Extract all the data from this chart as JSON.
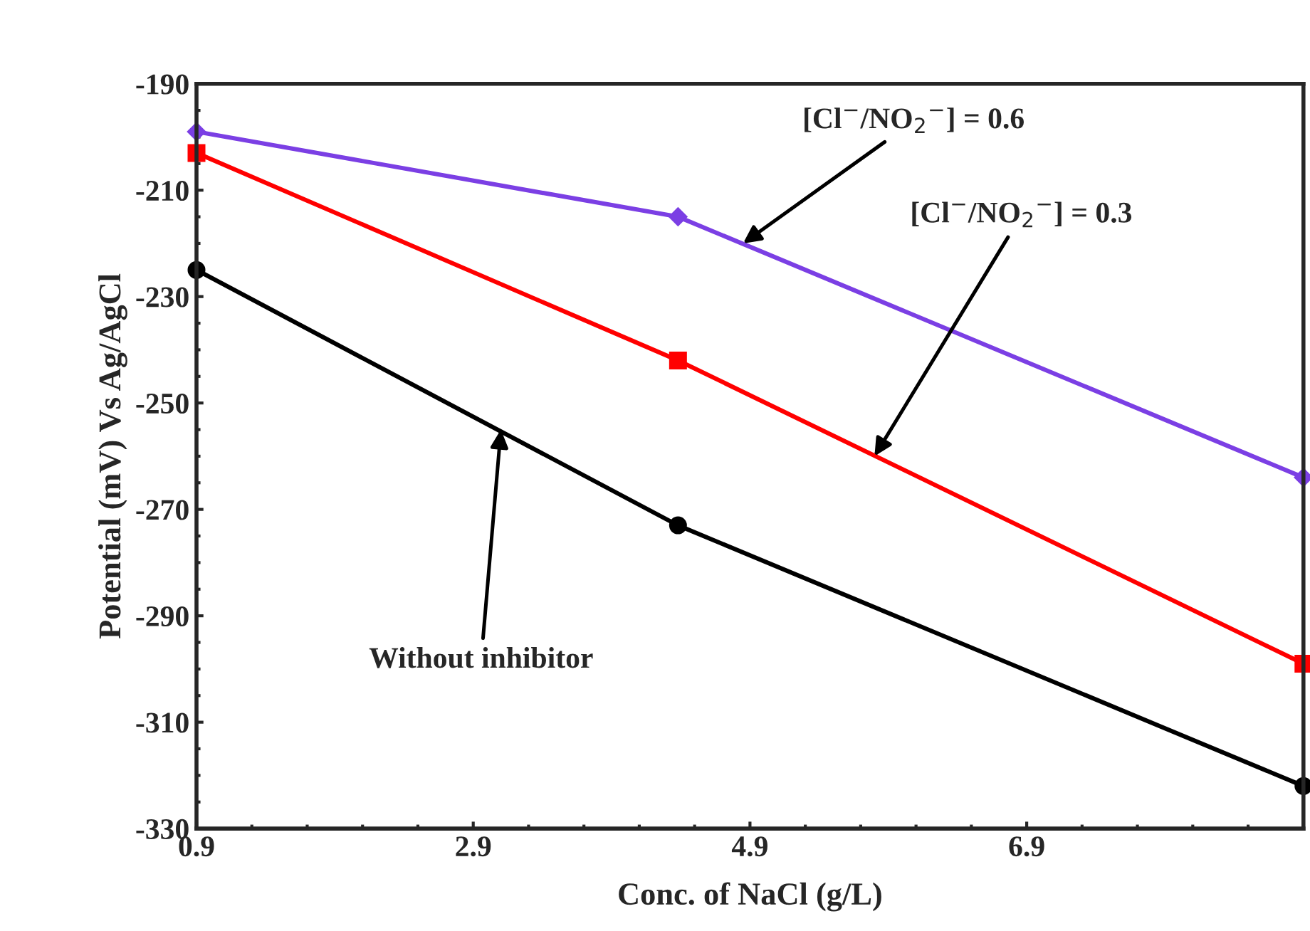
{
  "chart_data": {
    "type": "line",
    "xlabel": "Conc. of NaCl (g/L)",
    "ylabel": "Potential (mV) Vs Ag/AgCl",
    "x": [
      0.9,
      4.38,
      8.9
    ],
    "series": [
      {
        "color": "#7b3fe4",
        "marker": "diamond",
        "values": [
          -199,
          -215,
          -264
        ]
      },
      {
        "color": "#ff0000",
        "marker": "square",
        "values": [
          -203,
          -242,
          -299
        ]
      },
      {
        "color": "#000000",
        "marker": "circle",
        "values": [
          -225,
          -273,
          -322
        ]
      }
    ],
    "annotations": [
      {
        "text": "[Cl$^{−}$/NO$_{2}$$^{−}$] = 0.6",
        "x": 4.85,
        "y": -220
      },
      {
        "text": "[Cl$^{−}$/NO$_{2}$$^{−}$] = 0.3",
        "x": 5.8,
        "y": -260
      },
      {
        "text": "Without inhibitor",
        "x": 3.1,
        "y": -255
      }
    ],
    "xlim": [
      0.9,
      8.9
    ],
    "xticks": [
      0.9,
      2.9,
      4.9,
      6.9
    ],
    "ylim": [
      -330,
      -190
    ],
    "yticks": [
      -330,
      -310,
      -290,
      -270,
      -250,
      -230,
      -210,
      -190
    ],
    "grid": false,
    "legend": false,
    "line_style": "solid"
  }
}
